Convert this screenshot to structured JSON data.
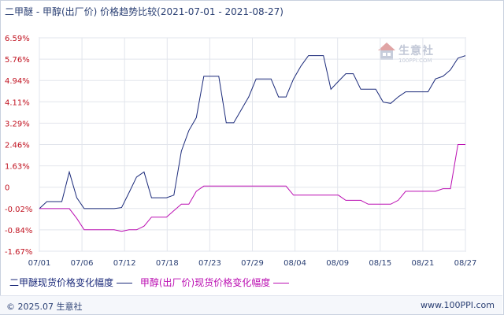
{
  "chart_data": {
    "type": "line",
    "title": "二甲醚 - 甲醇(出厂价) 价格趋势比较(2021-07-01 - 2021-08-27)",
    "x_ticks": [
      "07/01",
      "07/06",
      "07/12",
      "07/18",
      "07/23",
      "07/29",
      "08/04",
      "08/09",
      "08/15",
      "08/21",
      "08/27"
    ],
    "y_ticks": [
      "6.59%",
      "5.76%",
      "4.94%",
      "4.11%",
      "3.29%",
      "2.46%",
      "1.63%",
      "0",
      "-0.02%",
      "-0.84%",
      "-1.67%"
    ],
    "xlim": [
      "2021-07-01",
      "2021-08-27"
    ],
    "ylim": [
      -1.67,
      6.59
    ],
    "grid": true,
    "legend_position": "bottom",
    "series": [
      {
        "name": "二甲醚现货价格变化幅度",
        "color": "#1b2a7a",
        "x": [
          "2021-07-01",
          "2021-07-02",
          "2021-07-03",
          "2021-07-04",
          "2021-07-05",
          "2021-07-06",
          "2021-07-07",
          "2021-07-08",
          "2021-07-09",
          "2021-07-10",
          "2021-07-11",
          "2021-07-12",
          "2021-07-13",
          "2021-07-14",
          "2021-07-15",
          "2021-07-16",
          "2021-07-17",
          "2021-07-18",
          "2021-07-19",
          "2021-07-20",
          "2021-07-21",
          "2021-07-22",
          "2021-07-23",
          "2021-07-24",
          "2021-07-25",
          "2021-07-26",
          "2021-07-27",
          "2021-07-28",
          "2021-07-29",
          "2021-07-30",
          "2021-07-31",
          "2021-08-01",
          "2021-08-02",
          "2021-08-03",
          "2021-08-04",
          "2021-08-05",
          "2021-08-06",
          "2021-08-07",
          "2021-08-08",
          "2021-08-09",
          "2021-08-10",
          "2021-08-11",
          "2021-08-12",
          "2021-08-13",
          "2021-08-14",
          "2021-08-15",
          "2021-08-16",
          "2021-08-17",
          "2021-08-18",
          "2021-08-19",
          "2021-08-20",
          "2021-08-21",
          "2021-08-22",
          "2021-08-23",
          "2021-08-24",
          "2021-08-25",
          "2021-08-26",
          "2021-08-27"
        ],
        "values": [
          -0.02,
          0.25,
          0.25,
          0.25,
          1.4,
          0.4,
          -0.02,
          -0.02,
          -0.02,
          -0.02,
          -0.02,
          0.02,
          0.6,
          1.2,
          1.4,
          0.4,
          0.4,
          0.4,
          0.5,
          2.2,
          3.0,
          3.5,
          5.1,
          5.1,
          5.1,
          3.3,
          3.3,
          3.8,
          4.3,
          5.0,
          5.0,
          5.0,
          4.3,
          4.3,
          5.0,
          5.5,
          5.9,
          5.9,
          5.9,
          4.6,
          4.9,
          5.2,
          5.2,
          4.6,
          4.6,
          4.6,
          4.1,
          4.05,
          4.3,
          4.5,
          4.5,
          4.5,
          4.5,
          5.0,
          5.1,
          5.35,
          5.8,
          5.9
        ]
      },
      {
        "name": "甲醇(出厂价)现货价格变化幅度",
        "color": "#bb0fb2",
        "x": [
          "2021-07-01",
          "2021-07-02",
          "2021-07-03",
          "2021-07-04",
          "2021-07-05",
          "2021-07-06",
          "2021-07-07",
          "2021-07-08",
          "2021-07-09",
          "2021-07-10",
          "2021-07-11",
          "2021-07-12",
          "2021-07-13",
          "2021-07-14",
          "2021-07-15",
          "2021-07-16",
          "2021-07-17",
          "2021-07-18",
          "2021-07-19",
          "2021-07-20",
          "2021-07-21",
          "2021-07-22",
          "2021-07-23",
          "2021-07-24",
          "2021-07-25",
          "2021-07-26",
          "2021-07-27",
          "2021-07-28",
          "2021-07-29",
          "2021-07-30",
          "2021-07-31",
          "2021-08-01",
          "2021-08-02",
          "2021-08-03",
          "2021-08-04",
          "2021-08-05",
          "2021-08-06",
          "2021-08-07",
          "2021-08-08",
          "2021-08-09",
          "2021-08-10",
          "2021-08-11",
          "2021-08-12",
          "2021-08-13",
          "2021-08-14",
          "2021-08-15",
          "2021-08-16",
          "2021-08-17",
          "2021-08-18",
          "2021-08-19",
          "2021-08-20",
          "2021-08-21",
          "2021-08-22",
          "2021-08-23",
          "2021-08-24",
          "2021-08-25",
          "2021-08-26",
          "2021-08-27"
        ],
        "values": [
          -0.02,
          -0.02,
          -0.02,
          -0.02,
          -0.02,
          -0.4,
          -0.84,
          -0.84,
          -0.84,
          -0.84,
          -0.84,
          -0.9,
          -0.84,
          -0.84,
          -0.7,
          -0.35,
          -0.35,
          -0.35,
          -0.1,
          0.15,
          0.15,
          0.65,
          0.85,
          0.85,
          0.85,
          0.85,
          0.85,
          0.85,
          0.85,
          0.85,
          0.85,
          0.85,
          0.85,
          0.85,
          0.5,
          0.5,
          0.5,
          0.5,
          0.5,
          0.5,
          0.5,
          0.3,
          0.3,
          0.3,
          0.15,
          0.15,
          0.15,
          0.15,
          0.3,
          0.65,
          0.65,
          0.65,
          0.65,
          0.65,
          0.75,
          0.75,
          2.46,
          2.46
        ]
      }
    ]
  },
  "footer": {
    "copyright": "© 2025.07 生意社",
    "url": "www.100PPI.com"
  },
  "watermark": {
    "name": "生意社",
    "url": "100PPI.COM"
  }
}
